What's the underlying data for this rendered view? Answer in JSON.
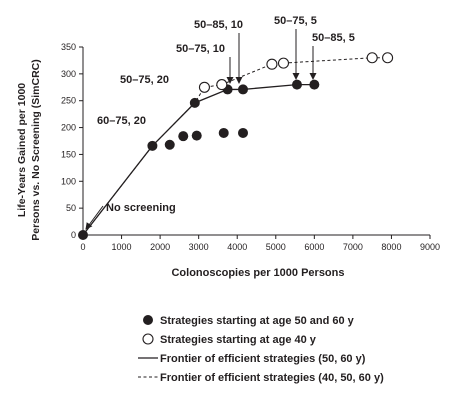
{
  "chart_data": {
    "type": "scatter",
    "xlabel": "Colonoscopies per 1000 Persons",
    "ylabel_line1": "Life-Years Gained per 1000",
    "ylabel_line2": "Persons vs. No Screening (SimCRC)",
    "xlim": [
      0,
      9000
    ],
    "ylim": [
      0,
      350
    ],
    "x_ticks": [
      0,
      1000,
      2000,
      3000,
      4000,
      5000,
      6000,
      7000,
      8000,
      9000
    ],
    "y_ticks": [
      0,
      50,
      100,
      150,
      200,
      250,
      300,
      350
    ],
    "series": [
      {
        "name": "Strategies starting at age 50 and 60 y",
        "marker": "filled-circle",
        "points": [
          {
            "x": 0,
            "y": 0
          },
          {
            "x": 1800,
            "y": 166
          },
          {
            "x": 2250,
            "y": 168
          },
          {
            "x": 2600,
            "y": 184
          },
          {
            "x": 2950,
            "y": 185
          },
          {
            "x": 2900,
            "y": 246
          },
          {
            "x": 3650,
            "y": 190
          },
          {
            "x": 4150,
            "y": 190
          },
          {
            "x": 3750,
            "y": 271
          },
          {
            "x": 4150,
            "y": 271
          },
          {
            "x": 5550,
            "y": 280
          },
          {
            "x": 6000,
            "y": 280
          }
        ]
      },
      {
        "name": "Strategies starting at age 40 y",
        "marker": "open-circle",
        "points": [
          {
            "x": 3150,
            "y": 275
          },
          {
            "x": 3600,
            "y": 280
          },
          {
            "x": 4900,
            "y": 318
          },
          {
            "x": 5200,
            "y": 320
          },
          {
            "x": 7500,
            "y": 330
          },
          {
            "x": 7900,
            "y": 330
          }
        ]
      }
    ],
    "frontiers": [
      {
        "name": "Frontier of efficient strategies (50, 60 y)",
        "style": "solid",
        "points": [
          [
            0,
            0
          ],
          [
            1800,
            166
          ],
          [
            2900,
            246
          ],
          [
            3750,
            271
          ],
          [
            4150,
            271
          ],
          [
            5550,
            280
          ],
          [
            6000,
            280
          ]
        ]
      },
      {
        "name": "Frontier of efficient strategies (40, 50, 60 y)",
        "style": "dashed",
        "points": [
          [
            0,
            0
          ],
          [
            1800,
            166
          ],
          [
            2900,
            246
          ],
          [
            3150,
            275
          ],
          [
            3600,
            280
          ],
          [
            4900,
            318
          ],
          [
            5200,
            320
          ],
          [
            7500,
            330
          ],
          [
            7900,
            330
          ]
        ]
      }
    ],
    "annotations": [
      {
        "text": "No screening",
        "x": 0,
        "y": 0
      },
      {
        "text": "60–75, 20",
        "x": 1800,
        "y": 166
      },
      {
        "text": "50–75, 20",
        "x": 2900,
        "y": 246
      },
      {
        "text": "50–75, 10",
        "x": 3750,
        "y": 271
      },
      {
        "text": "50–85, 10",
        "x": 4150,
        "y": 271
      },
      {
        "text": "50–75, 5",
        "x": 5550,
        "y": 280
      },
      {
        "text": "50–85, 5",
        "x": 6000,
        "y": 280
      }
    ]
  },
  "legend": [
    {
      "label": "Strategies starting at age 50 and 60 y",
      "kind": "filled-circle"
    },
    {
      "label": "Strategies starting at age 40 y",
      "kind": "open-circle"
    },
    {
      "label": "Frontier of efficient strategies (50, 60 y)",
      "kind": "solid-line"
    },
    {
      "label": "Frontier of efficient strategies (40, 50, 60 y)",
      "kind": "dashed-line"
    }
  ],
  "colors": {
    "ink": "#231f20",
    "background": "#ffffff"
  }
}
